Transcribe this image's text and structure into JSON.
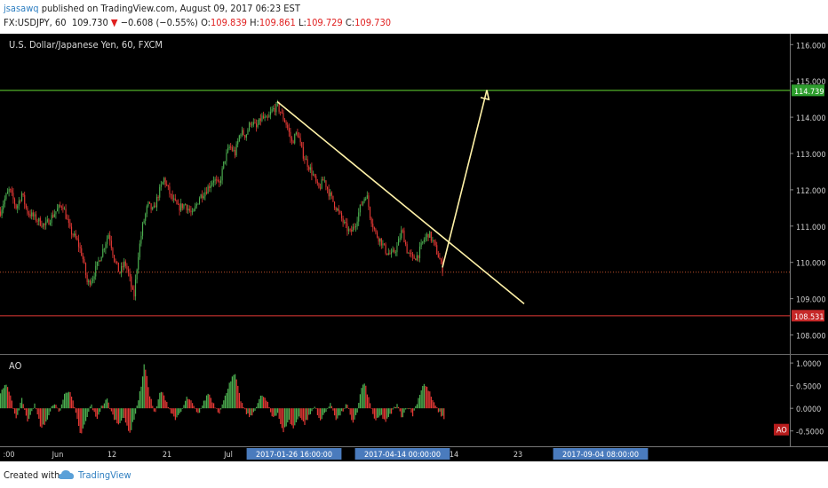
{
  "header": {
    "author": "jsasawq",
    "published_text": "published on TradingView.com, August 09, 2017 06:23 EST",
    "symbol_interval": "FX:USDJPY, 60",
    "last_price": "109.730",
    "change": "−0.608 (−0.55%)",
    "open_label": "O:",
    "open": "109.839",
    "high_label": "H:",
    "high": "109.861",
    "low_label": "L:",
    "low": "109.729",
    "close_label": "C:",
    "close": "109.730"
  },
  "footer": {
    "created_with": "Created with",
    "brand": "TradingView"
  },
  "colors": {
    "background": "#000000",
    "up_candle": "#4caf50",
    "down_candle": "#e53935",
    "resistance_line": "#66dd33",
    "support_line": "#e53935",
    "trendline": "#fff2a8",
    "axis_date_highlight": "#4a7bbd"
  },
  "chart_data": [
    {
      "type": "candlestick",
      "title": "U.S. Dollar/Japanese Yen, 60, FXCM",
      "ylim": [
        107.5,
        116.3
      ],
      "yticks": [
        "116.000",
        "115.000",
        "114.000",
        "113.000",
        "112.000",
        "111.000",
        "110.000",
        "109.000",
        "108.000"
      ],
      "xticks": [
        ":00",
        "Jun",
        "12",
        "21",
        "Jul",
        "2017-01-26 16:00:00",
        "2017-04-14 00:00:00",
        "14",
        "23",
        "2017-09-04 08:00:00"
      ],
      "highlighted_xticks": [
        "2017-01-26 16:00:00",
        "2017-04-14 00:00:00",
        "2017-09-04 08:00:00"
      ],
      "price_path": [
        [
          0,
          111.4
        ],
        [
          4,
          111.7
        ],
        [
          10,
          112.0
        ],
        [
          18,
          111.5
        ],
        [
          24,
          111.9
        ],
        [
          30,
          111.4
        ],
        [
          40,
          111.2
        ],
        [
          50,
          111.0
        ],
        [
          62,
          111.4
        ],
        [
          70,
          111.6
        ],
        [
          78,
          110.9
        ],
        [
          86,
          110.6
        ],
        [
          92,
          110.2
        ],
        [
          98,
          109.4
        ],
        [
          104,
          109.6
        ],
        [
          110,
          110.0
        ],
        [
          116,
          110.4
        ],
        [
          122,
          110.8
        ],
        [
          128,
          110.1
        ],
        [
          134,
          109.7
        ],
        [
          140,
          110.0
        ],
        [
          145,
          109.6
        ],
        [
          150,
          109.0
        ],
        [
          155,
          110.2
        ],
        [
          160,
          111.0
        ],
        [
          166,
          111.6
        ],
        [
          172,
          111.4
        ],
        [
          178,
          111.9
        ],
        [
          184,
          112.3
        ],
        [
          192,
          111.8
        ],
        [
          200,
          111.5
        ],
        [
          208,
          111.6
        ],
        [
          216,
          111.3
        ],
        [
          224,
          111.8
        ],
        [
          232,
          112.0
        ],
        [
          240,
          112.3
        ],
        [
          246,
          112.1
        ],
        [
          252,
          112.8
        ],
        [
          258,
          113.2
        ],
        [
          264,
          113.0
        ],
        [
          270,
          113.6
        ],
        [
          276,
          113.5
        ],
        [
          282,
          113.9
        ],
        [
          288,
          113.7
        ],
        [
          294,
          114.0
        ],
        [
          300,
          113.9
        ],
        [
          306,
          114.2
        ],
        [
          312,
          114.3
        ],
        [
          316,
          114.1
        ],
        [
          322,
          113.8
        ],
        [
          328,
          113.3
        ],
        [
          334,
          113.6
        ],
        [
          340,
          113.0
        ],
        [
          346,
          112.7
        ],
        [
          352,
          112.4
        ],
        [
          358,
          112.0
        ],
        [
          364,
          112.3
        ],
        [
          370,
          111.9
        ],
        [
          376,
          111.6
        ],
        [
          382,
          111.3
        ],
        [
          388,
          111.0
        ],
        [
          394,
          110.8
        ],
        [
          400,
          111.1
        ],
        [
          406,
          111.6
        ],
        [
          412,
          111.9
        ],
        [
          416,
          111.3
        ],
        [
          422,
          110.8
        ],
        [
          428,
          110.6
        ],
        [
          434,
          110.3
        ],
        [
          440,
          110.2
        ],
        [
          446,
          110.4
        ],
        [
          452,
          110.9
        ],
        [
          458,
          110.3
        ],
        [
          464,
          110.1
        ],
        [
          470,
          110.2
        ],
        [
          476,
          110.6
        ],
        [
          482,
          110.8
        ],
        [
          488,
          110.5
        ],
        [
          494,
          110.1
        ],
        [
          499,
          109.7
        ]
      ],
      "annotations": [
        {
          "type": "horizontal_line",
          "label": "114.739",
          "value": 114.739
        },
        {
          "type": "horizontal_line",
          "label": "108.531",
          "value": 108.531
        },
        {
          "type": "price_marker",
          "value": 109.73
        },
        {
          "type": "trendline",
          "from": [
            312,
            114.43
          ],
          "to": [
            590,
            108.86
          ]
        },
        {
          "type": "arrow",
          "from": [
            498,
            109.86
          ],
          "to": [
            548,
            114.75
          ]
        }
      ]
    },
    {
      "type": "bar",
      "title": "AO",
      "badge": "AO",
      "ylim": [
        -0.78,
        1.1
      ],
      "yticks": [
        "1.0000",
        "0.5000",
        "0.0000",
        "-0.5000"
      ],
      "ao_path": [
        [
          0,
          0.35
        ],
        [
          6,
          0.55
        ],
        [
          12,
          0.2
        ],
        [
          18,
          -0.25
        ],
        [
          24,
          0.25
        ],
        [
          30,
          -0.3
        ],
        [
          38,
          0.1
        ],
        [
          46,
          -0.45
        ],
        [
          54,
          -0.2
        ],
        [
          60,
          0.15
        ],
        [
          66,
          -0.1
        ],
        [
          72,
          0.3
        ],
        [
          78,
          0.42
        ],
        [
          84,
          -0.05
        ],
        [
          90,
          -0.6
        ],
        [
          96,
          -0.3
        ],
        [
          102,
          0.1
        ],
        [
          108,
          -0.25
        ],
        [
          114,
          0.05
        ],
        [
          120,
          0.2
        ],
        [
          126,
          -0.15
        ],
        [
          132,
          -0.35
        ],
        [
          138,
          -0.2
        ],
        [
          146,
          -0.55
        ],
        [
          152,
          -0.1
        ],
        [
          158,
          0.45
        ],
        [
          162,
          1.0
        ],
        [
          168,
          0.3
        ],
        [
          174,
          -0.15
        ],
        [
          180,
          0.4
        ],
        [
          186,
          0.2
        ],
        [
          192,
          -0.1
        ],
        [
          198,
          -0.25
        ],
        [
          204,
          -0.05
        ],
        [
          210,
          0.25
        ],
        [
          216,
          0.1
        ],
        [
          222,
          -0.15
        ],
        [
          228,
          0.1
        ],
        [
          234,
          0.35
        ],
        [
          240,
          0.1
        ],
        [
          246,
          -0.1
        ],
        [
          252,
          0.2
        ],
        [
          258,
          0.6
        ],
        [
          264,
          0.75
        ],
        [
          270,
          0.2
        ],
        [
          276,
          -0.1
        ],
        [
          282,
          -0.2
        ],
        [
          288,
          0.05
        ],
        [
          294,
          0.3
        ],
        [
          300,
          0.15
        ],
        [
          306,
          -0.2
        ],
        [
          312,
          -0.1
        ],
        [
          318,
          -0.55
        ],
        [
          324,
          -0.25
        ],
        [
          330,
          -0.45
        ],
        [
          336,
          -0.15
        ],
        [
          342,
          -0.35
        ],
        [
          348,
          -0.15
        ],
        [
          354,
          0.05
        ],
        [
          360,
          -0.3
        ],
        [
          366,
          -0.05
        ],
        [
          372,
          0.1
        ],
        [
          378,
          -0.25
        ],
        [
          384,
          -0.1
        ],
        [
          390,
          0.1
        ],
        [
          396,
          -0.35
        ],
        [
          402,
          -0.05
        ],
        [
          406,
          0.45
        ],
        [
          410,
          0.55
        ],
        [
          416,
          0.1
        ],
        [
          422,
          -0.3
        ],
        [
          428,
          -0.15
        ],
        [
          434,
          -0.3
        ],
        [
          440,
          -0.1
        ],
        [
          446,
          0.1
        ],
        [
          452,
          -0.2
        ],
        [
          458,
          0.05
        ],
        [
          464,
          -0.15
        ],
        [
          470,
          0.2
        ],
        [
          476,
          0.55
        ],
        [
          482,
          0.4
        ],
        [
          488,
          0.1
        ],
        [
          494,
          -0.1
        ],
        [
          500,
          -0.25
        ]
      ]
    }
  ]
}
